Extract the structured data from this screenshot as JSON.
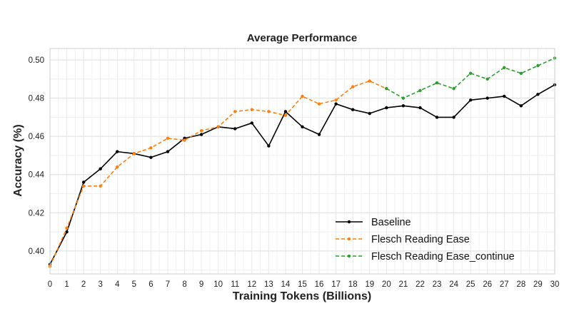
{
  "chart_data": {
    "type": "line",
    "title": "Average Performance",
    "xlabel": "Training Tokens (Billions)",
    "ylabel": "Accuracy (%)",
    "xlim": [
      0,
      30
    ],
    "ylim": [
      0.388,
      0.506
    ],
    "xticks": [
      0,
      1,
      2,
      3,
      4,
      5,
      6,
      7,
      8,
      9,
      10,
      11,
      12,
      13,
      14,
      15,
      16,
      17,
      18,
      19,
      20,
      21,
      22,
      23,
      24,
      25,
      26,
      27,
      28,
      29,
      30
    ],
    "yticks": [
      0.4,
      0.42,
      0.44,
      0.46,
      0.48,
      0.5
    ],
    "ytick_labels": [
      "0.40",
      "0.42",
      "0.44",
      "0.46",
      "0.48",
      "0.50"
    ],
    "grid": true,
    "legend_position": "bottom-right",
    "series": [
      {
        "name": "Baseline",
        "color": "#000000",
        "style": "solid",
        "x": [
          0,
          1,
          2,
          3,
          4,
          5,
          6,
          7,
          8,
          9,
          10,
          11,
          12,
          13,
          14,
          15,
          16,
          17,
          18,
          19,
          20,
          21,
          22,
          23,
          24,
          25,
          26,
          27,
          28,
          29,
          30
        ],
        "y": [
          0.393,
          0.41,
          0.436,
          0.443,
          0.452,
          0.451,
          0.449,
          0.452,
          0.459,
          0.461,
          0.465,
          0.464,
          0.467,
          0.455,
          0.473,
          0.465,
          0.461,
          0.477,
          0.474,
          0.472,
          0.475,
          0.476,
          0.475,
          0.47,
          0.47,
          0.479,
          0.48,
          0.481,
          0.476,
          0.482,
          0.487
        ]
      },
      {
        "name": "Flesch Reading Ease",
        "color": "#ff7f0e",
        "style": "dashed",
        "x": [
          0,
          1,
          2,
          3,
          4,
          5,
          6,
          7,
          8,
          9,
          10,
          11,
          12,
          13,
          14,
          15,
          16,
          17,
          18,
          19,
          20
        ],
        "y": [
          0.392,
          0.412,
          0.434,
          0.434,
          0.444,
          0.451,
          0.454,
          0.459,
          0.458,
          0.463,
          0.465,
          0.473,
          0.474,
          0.473,
          0.471,
          0.481,
          0.477,
          0.479,
          0.486,
          0.489,
          0.485
        ]
      },
      {
        "name": "Flesch Reading Ease_continue",
        "color": "#2ca02c",
        "style": "dashed",
        "x": [
          20,
          21,
          22,
          23,
          24,
          25,
          26,
          27,
          28,
          29,
          30
        ],
        "y": [
          0.485,
          0.48,
          0.484,
          0.488,
          0.485,
          0.493,
          0.49,
          0.496,
          0.493,
          0.497,
          0.501
        ]
      }
    ]
  }
}
